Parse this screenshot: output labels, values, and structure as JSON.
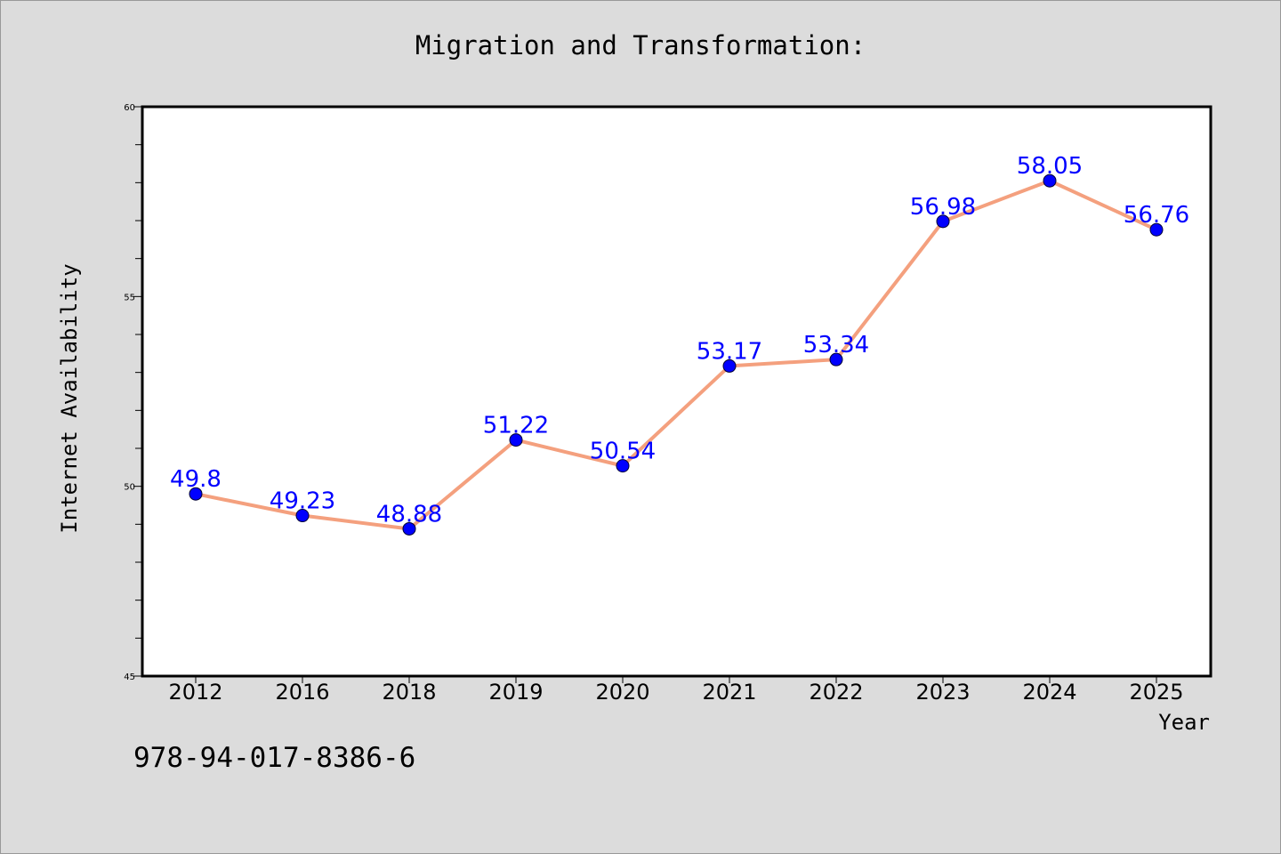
{
  "chart_data": {
    "type": "line",
    "title": "Migration and Transformation:",
    "xlabel": "Year",
    "ylabel": "Internet Availability",
    "categories": [
      "2012",
      "2016",
      "2018",
      "2019",
      "2020",
      "2021",
      "2022",
      "2023",
      "2024",
      "2025"
    ],
    "series": [
      {
        "values": [
          49.8,
          49.23,
          48.88,
          51.22,
          50.54,
          53.17,
          53.34,
          56.98,
          58.05,
          56.76
        ],
        "line_color": "#f4a07e",
        "marker_color": "#0000ff"
      }
    ],
    "data_labels": [
      "49.8",
      "49.23",
      "48.88",
      "51.22",
      "50.54",
      "53.17",
      "53.34",
      "56.98",
      "58.05",
      "56.76"
    ],
    "ylim": [
      45,
      60
    ],
    "yticks": [
      45,
      50,
      55,
      60
    ],
    "ytick_labels": [
      "45",
      "50",
      "55",
      "60"
    ],
    "grid": false,
    "label_color": "#0000ff"
  },
  "footnote": "978-94-017-8386-6"
}
